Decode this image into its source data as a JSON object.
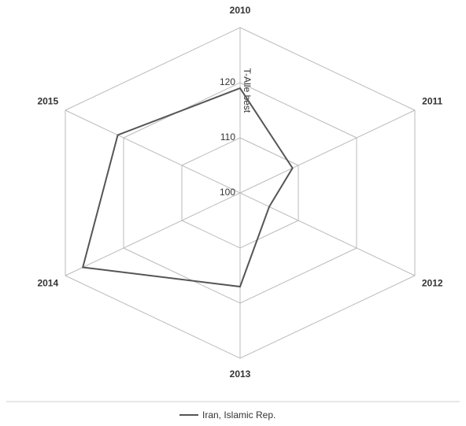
{
  "chart_data": {
    "type": "radar",
    "axis_label": "T-Alle best",
    "categories": [
      "2010",
      "2011",
      "2012",
      "2013",
      "2014",
      "2015"
    ],
    "series": [
      {
        "name": "Iran, Islamic Rep.",
        "color": "#555555",
        "values": [
          119,
          109,
          105,
          117,
          127,
          121
        ]
      }
    ],
    "ylim": [
      100,
      130
    ],
    "yticks": [
      100,
      110,
      120
    ],
    "grid": true,
    "legend": "bottom"
  }
}
